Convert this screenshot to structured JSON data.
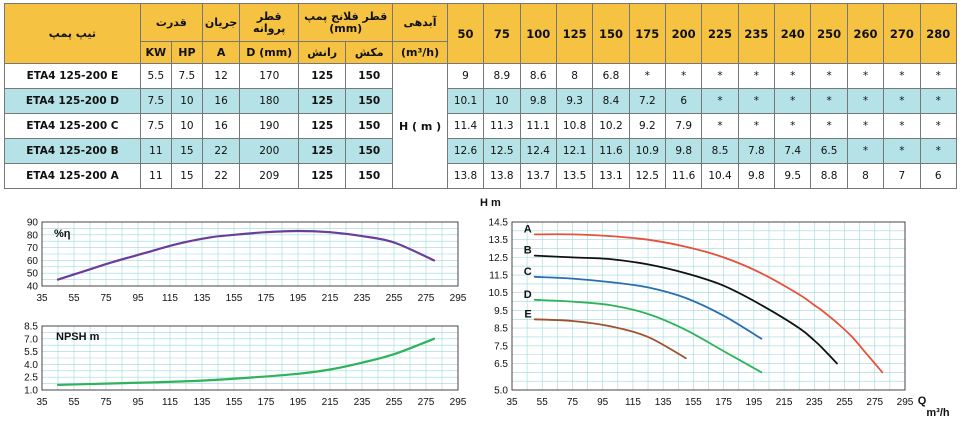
{
  "table": {
    "header": {
      "pump_type": "تیپ پمپ",
      "power": "قدرت",
      "current": "جریان",
      "impeller_diameter": "قطر پروانه",
      "flange_diameter": "قطر فلانج پمپ (mm)",
      "flow": "آبدهی",
      "flow_unit": "(m³/h)",
      "power_kw": "KW",
      "power_hp": "HP",
      "current_unit": "A",
      "impeller_unit": "D (mm)",
      "discharge": "رانش",
      "suction": "مکش",
      "flow_points": [
        "50",
        "75",
        "100",
        "125",
        "150",
        "175",
        "200",
        "225",
        "235",
        "240",
        "250",
        "260",
        "270",
        "280"
      ]
    },
    "head_label": "H ( m )",
    "rows": [
      {
        "model": "ETA4 125-200 E",
        "kw": "5.5",
        "hp": "7.5",
        "amp": "12",
        "d": "170",
        "discharge": "125",
        "suction": "150",
        "heads": [
          "9",
          "8.9",
          "8.6",
          "8",
          "6.8",
          "*",
          "*",
          "*",
          "*",
          "*",
          "*",
          "*",
          "*",
          "*"
        ]
      },
      {
        "model": "ETA4 125-200 D",
        "kw": "7.5",
        "hp": "10",
        "amp": "16",
        "d": "180",
        "discharge": "125",
        "suction": "150",
        "heads": [
          "10.1",
          "10",
          "9.8",
          "9.3",
          "8.4",
          "7.2",
          "6",
          "*",
          "*",
          "*",
          "*",
          "*",
          "*",
          "*"
        ]
      },
      {
        "model": "ETA4 125-200 C",
        "kw": "7.5",
        "hp": "10",
        "amp": "16",
        "d": "190",
        "discharge": "125",
        "suction": "150",
        "heads": [
          "11.4",
          "11.3",
          "11.1",
          "10.8",
          "10.2",
          "9.2",
          "7.9",
          "*",
          "*",
          "*",
          "*",
          "*",
          "*",
          "*"
        ]
      },
      {
        "model": "ETA4 125-200 B",
        "kw": "11",
        "hp": "15",
        "amp": "22",
        "d": "200",
        "discharge": "125",
        "suction": "150",
        "heads": [
          "12.6",
          "12.5",
          "12.4",
          "12.1",
          "11.6",
          "10.9",
          "9.8",
          "8.5",
          "7.8",
          "7.4",
          "6.5",
          "*",
          "*",
          "*"
        ]
      },
      {
        "model": "ETA4 125-200 A",
        "kw": "11",
        "hp": "15",
        "amp": "22",
        "d": "209",
        "discharge": "125",
        "suction": "150",
        "heads": [
          "13.8",
          "13.8",
          "13.7",
          "13.5",
          "13.1",
          "12.5",
          "11.6",
          "10.4",
          "9.8",
          "9.5",
          "8.8",
          "8",
          "7",
          "6"
        ]
      }
    ]
  },
  "colors": {
    "header": "#f5c242",
    "alt_row": "#b5e2e6",
    "efficiency": "#6a3d9a",
    "npsh": "#2fb35a",
    "curve_A": "#e8503a",
    "curve_B": "#111111",
    "curve_C": "#2a6fb0",
    "curve_D": "#2fb35a",
    "curve_E": "#a0522d",
    "grid": "#9fd8dc"
  },
  "chart_data": [
    {
      "type": "line",
      "ylabel": "%η",
      "xlim": [
        35,
        295
      ],
      "ylim": [
        40,
        90
      ],
      "x_ticks": [
        35,
        55,
        75,
        95,
        115,
        135,
        155,
        175,
        195,
        215,
        235,
        255,
        275,
        295
      ],
      "y_ticks": [
        40,
        50,
        60,
        70,
        80,
        90
      ],
      "grid": true,
      "series": [
        {
          "x": [
            45,
            60,
            80,
            100,
            120,
            140,
            155,
            175,
            195,
            215,
            235,
            255,
            280
          ],
          "values": [
            45,
            51,
            59,
            66,
            73,
            78,
            80,
            82,
            83,
            82,
            79,
            74,
            60
          ]
        }
      ]
    },
    {
      "type": "line",
      "ylabel": "NPSH m",
      "xlim": [
        35,
        295
      ],
      "ylim": [
        1.0,
        8.5
      ],
      "x_ticks": [
        35,
        55,
        75,
        95,
        115,
        135,
        155,
        175,
        195,
        215,
        235,
        255,
        275,
        295
      ],
      "y_ticks": [
        "1.0",
        "2.5",
        "4.0",
        "5.5",
        "7.0",
        "8.5"
      ],
      "grid": true,
      "series": [
        {
          "x": [
            45,
            75,
            105,
            135,
            165,
            195,
            215,
            235,
            255,
            280
          ],
          "values": [
            1.6,
            1.75,
            1.9,
            2.1,
            2.45,
            2.9,
            3.4,
            4.2,
            5.2,
            7.0
          ]
        }
      ]
    },
    {
      "type": "line",
      "xlabel": "Q m³/h",
      "ylabel": "H m",
      "xlim": [
        35,
        295
      ],
      "ylim": [
        5.0,
        14.5
      ],
      "x_ticks": [
        35,
        55,
        75,
        95,
        115,
        135,
        155,
        175,
        195,
        215,
        235,
        255,
        275,
        295
      ],
      "y_ticks": [
        "5.0",
        "6.5",
        "7.5",
        "8.5",
        "9.5",
        "10.5",
        "11.5",
        "12.5",
        "13.5",
        "14.5"
      ],
      "grid": true,
      "series": [
        {
          "name": "A",
          "x": [
            50,
            75,
            100,
            125,
            150,
            175,
            200,
            225,
            235,
            240,
            250,
            260,
            270,
            280
          ],
          "values": [
            13.8,
            13.8,
            13.7,
            13.5,
            13.1,
            12.5,
            11.6,
            10.4,
            9.8,
            9.5,
            8.8,
            8,
            7,
            6
          ]
        },
        {
          "name": "B",
          "x": [
            50,
            75,
            100,
            125,
            150,
            175,
            200,
            225,
            235,
            240,
            250
          ],
          "values": [
            12.6,
            12.5,
            12.4,
            12.1,
            11.6,
            10.9,
            9.8,
            8.5,
            7.8,
            7.4,
            6.5
          ]
        },
        {
          "name": "C",
          "x": [
            50,
            75,
            100,
            125,
            150,
            175,
            200
          ],
          "values": [
            11.4,
            11.3,
            11.1,
            10.8,
            10.2,
            9.2,
            7.9
          ]
        },
        {
          "name": "D",
          "x": [
            50,
            75,
            100,
            125,
            150,
            175,
            200
          ],
          "values": [
            10.1,
            10,
            9.8,
            9.3,
            8.4,
            7.2,
            6
          ]
        },
        {
          "name": "E",
          "x": [
            50,
            75,
            100,
            125,
            150
          ],
          "values": [
            9,
            8.9,
            8.6,
            8,
            6.8
          ]
        }
      ]
    }
  ]
}
